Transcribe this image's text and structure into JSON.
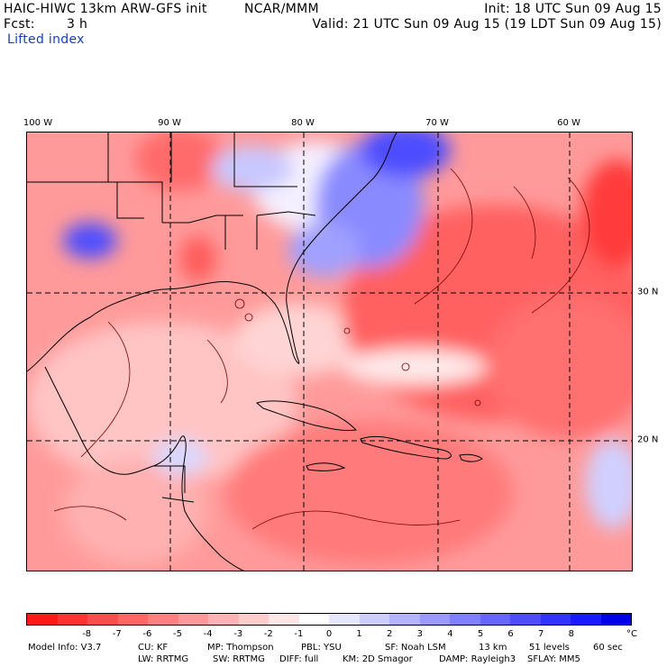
{
  "header": {
    "model_title": "HAIC-HIWC 13km ARW-GFS init",
    "org": "NCAR/MMM",
    "init": "Init: 18 UTC Sun 09 Aug 15",
    "fcst_label": "Fcst:",
    "fcst_value": "3 h",
    "valid": "Valid: 21 UTC Sun 09 Aug 15 (19 LDT Sun 09 Aug 15)",
    "field": "Lifted index"
  },
  "map": {
    "lon_labels": [
      "100 W",
      "90 W",
      "80 W",
      "70 W",
      "60 W"
    ],
    "lat_labels": [
      "30 N",
      "20 N"
    ]
  },
  "colorbar": {
    "ticks": [
      "-8",
      "-7",
      "-6",
      "-5",
      "-4",
      "-3",
      "-2",
      "-1",
      "0",
      "1",
      "2",
      "3",
      "4",
      "5",
      "6",
      "7",
      "8"
    ],
    "unit": "°C",
    "colors": [
      "#ff1a1a",
      "#ff3333",
      "#ff4d4d",
      "#ff6666",
      "#ff8080",
      "#ff9999",
      "#ffb3b3",
      "#ffcccc",
      "#ffe6e6",
      "#ffffff",
      "#e6e6ff",
      "#ccccff",
      "#b3b3ff",
      "#9999ff",
      "#8080ff",
      "#6666ff",
      "#4d4dff",
      "#3333ff",
      "#1a1aff",
      "#0000e6"
    ]
  },
  "model_info": {
    "line1": [
      "Model Info: V3.7",
      "CU: KF",
      "MP: Thompson",
      "PBL: YSU",
      "SF: Noah LSM",
      "13 km",
      "51 levels",
      "60 sec"
    ],
    "line2": [
      "LW: RRTMG",
      "SW: RRTMG",
      "DIFF: full",
      "KM: 2D Smagor",
      "DAMP: Rayleigh3",
      "SFLAY: MM5"
    ]
  }
}
